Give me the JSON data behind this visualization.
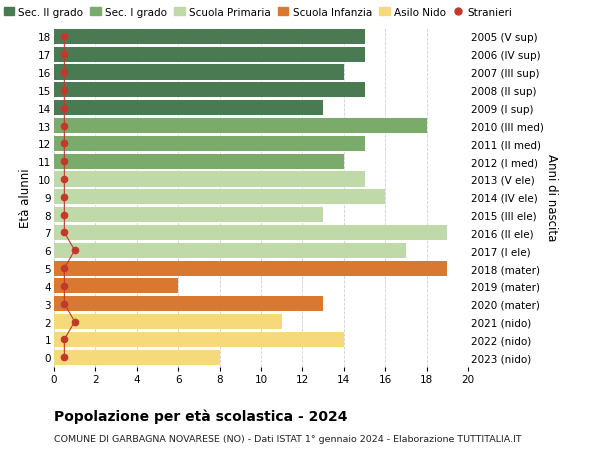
{
  "ages": [
    18,
    17,
    16,
    15,
    14,
    13,
    12,
    11,
    10,
    9,
    8,
    7,
    6,
    5,
    4,
    3,
    2,
    1,
    0
  ],
  "right_labels": [
    "2005 (V sup)",
    "2006 (IV sup)",
    "2007 (III sup)",
    "2008 (II sup)",
    "2009 (I sup)",
    "2010 (III med)",
    "2011 (II med)",
    "2012 (I med)",
    "2013 (V ele)",
    "2014 (IV ele)",
    "2015 (III ele)",
    "2016 (II ele)",
    "2017 (I ele)",
    "2018 (mater)",
    "2019 (mater)",
    "2020 (mater)",
    "2021 (nido)",
    "2022 (nido)",
    "2023 (nido)"
  ],
  "bar_values": [
    15,
    15,
    14,
    15,
    13,
    18,
    15,
    14,
    15,
    16,
    13,
    19,
    17,
    19,
    6,
    13,
    11,
    14,
    8
  ],
  "bar_colors": [
    "#4a7a52",
    "#4a7a52",
    "#4a7a52",
    "#4a7a52",
    "#4a7a52",
    "#7aab6a",
    "#7aab6a",
    "#7aab6a",
    "#c0d9a8",
    "#c0d9a8",
    "#c0d9a8",
    "#c0d9a8",
    "#c0d9a8",
    "#d97830",
    "#d97830",
    "#d97830",
    "#f5d97a",
    "#f5d97a",
    "#f5d97a"
  ],
  "stranieri_values": [
    0.5,
    0.5,
    0.5,
    0.5,
    0.5,
    0.5,
    0.5,
    0.5,
    0.5,
    0.5,
    0.5,
    0.5,
    1.0,
    0.5,
    0.5,
    0.5,
    1.0,
    0.5,
    0.5
  ],
  "stranieri_color": "#c0392b",
  "title": "Popolazione per età scolastica - 2024",
  "subtitle": "COMUNE DI GARBAGNA NOVARESE (NO) - Dati ISTAT 1° gennaio 2024 - Elaborazione TUTTITALIA.IT",
  "ylabel": "Età alunni",
  "right_ylabel": "Anni di nascita",
  "xlim": [
    0,
    20
  ],
  "xticks": [
    0,
    2,
    4,
    6,
    8,
    10,
    12,
    14,
    16,
    18,
    20
  ],
  "legend_labels": [
    "Sec. II grado",
    "Sec. I grado",
    "Scuola Primaria",
    "Scuola Infanzia",
    "Asilo Nido",
    "Stranieri"
  ],
  "legend_colors": [
    "#4a7a52",
    "#7aab6a",
    "#c0d9a8",
    "#d97830",
    "#f5d97a",
    "#c0392b"
  ],
  "bg_color": "#ffffff",
  "grid_color": "#d0d0d0"
}
